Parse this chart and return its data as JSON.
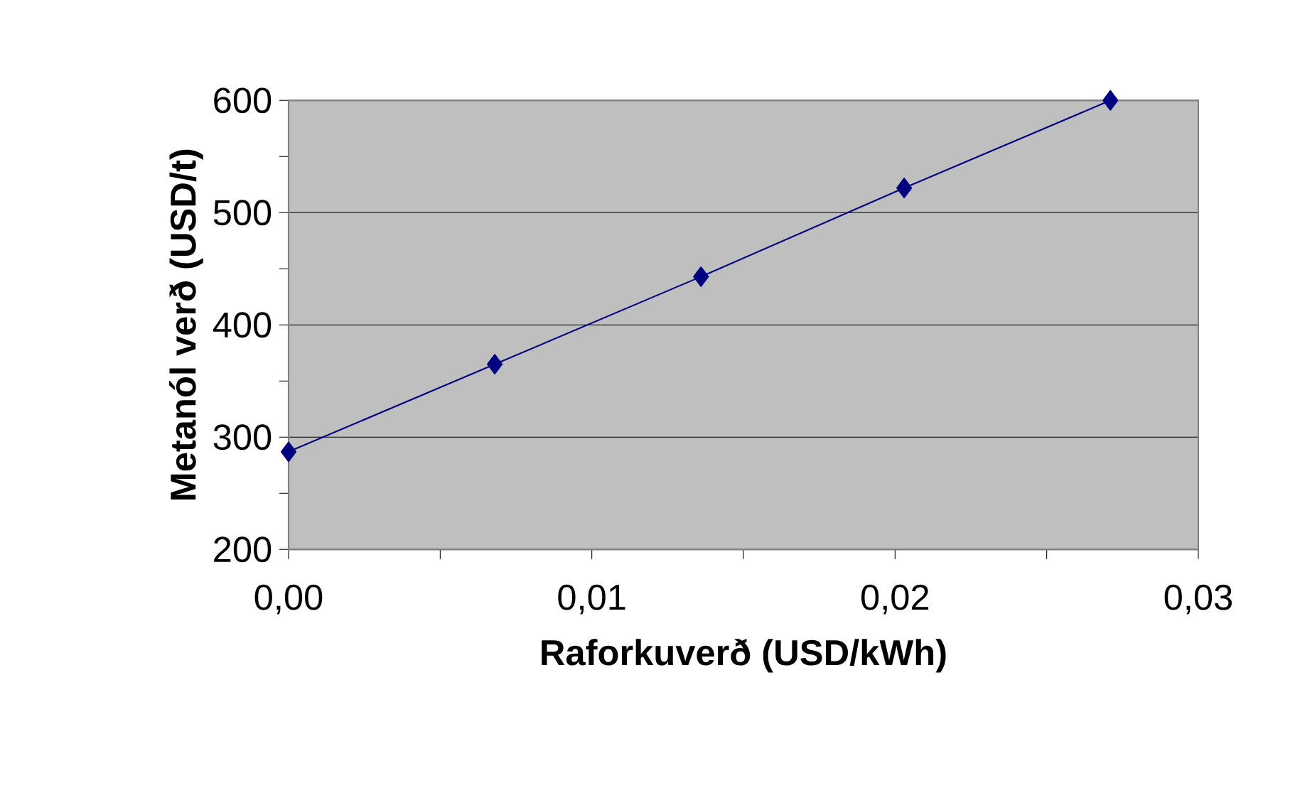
{
  "chart_data": {
    "type": "line",
    "xlabel": "Raforkuverð (USD/kWh)",
    "ylabel": "Metanól verð (USD/t)",
    "x": [
      0,
      0.0068,
      0.0136,
      0.0203,
      0.0271
    ],
    "series": [
      {
        "color": "#000080",
        "values": [
          287,
          365,
          443,
          522,
          600
        ]
      }
    ],
    "xlim": [
      0,
      0.03
    ],
    "xticks": [
      {
        "value": 0,
        "label": "0,00"
      },
      {
        "value": 0.005,
        "label": null
      },
      {
        "value": 0.01,
        "label": "0,01"
      },
      {
        "value": 0.015,
        "label": null
      },
      {
        "value": 0.02,
        "label": "0,02"
      },
      {
        "value": 0.025,
        "label": null
      },
      {
        "value": 0.03,
        "label": "0,03"
      }
    ],
    "ylim": [
      200,
      600
    ],
    "yticks": [
      200,
      {
        "value": 250,
        "label": null
      },
      300,
      {
        "value": 350,
        "label": null
      },
      400,
      {
        "value": 450,
        "label": null
      },
      500,
      {
        "value": 550,
        "label": null
      },
      600
    ],
    "grid": "y",
    "marker": "diamond",
    "line_style": "solid"
  }
}
